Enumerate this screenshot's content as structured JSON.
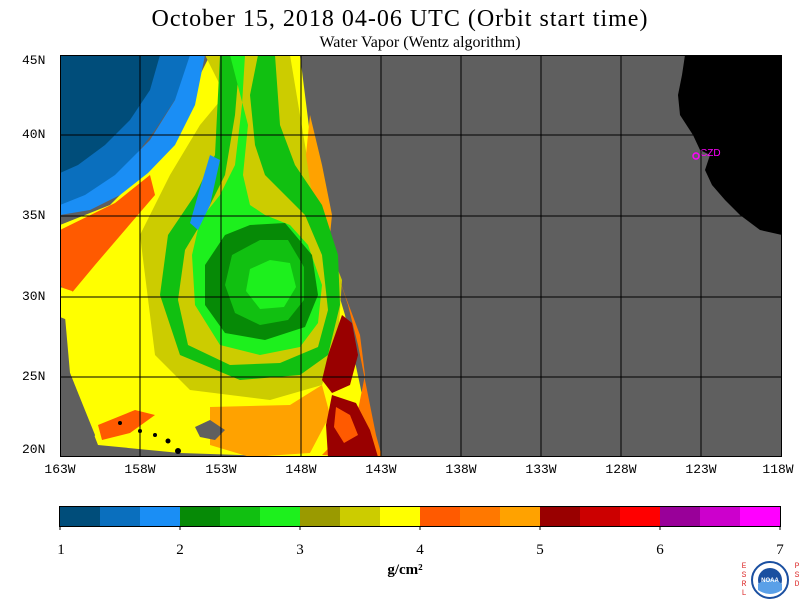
{
  "title": "October 15, 2018  04-06 UTC  (Orbit start time)",
  "subtitle": "Water Vapor (Wentz algorithm)",
  "lat_labels": [
    "45N",
    "40N",
    "35N",
    "30N",
    "25N",
    "20N"
  ],
  "lon_labels": [
    "163W",
    "158W",
    "153W",
    "148W",
    "143W",
    "138W",
    "133W",
    "128W",
    "123W",
    "118W"
  ],
  "station_label": "CZD",
  "colorbar": {
    "colors": [
      "#004d7a",
      "#0a6fbe",
      "#1a8ef5",
      "#068a06",
      "#11c011",
      "#1df01d",
      "#9a9a00",
      "#cccc00",
      "#ffff00",
      "#ff5a00",
      "#ff7800",
      "#ffa200",
      "#990000",
      "#cc0000",
      "#ff0000",
      "#990099",
      "#cc00cc",
      "#ff00ff"
    ],
    "ticks": [
      "1",
      "2",
      "3",
      "4",
      "5",
      "6",
      "7"
    ],
    "units": "g/cm²"
  },
  "colors": {
    "no_data": "#5f5f5f",
    "land": "#000000",
    "grid": "#000000",
    "station": "#ff00ff"
  },
  "logo": {
    "left_text": "ESRL",
    "right_text": "PSD",
    "center_text": "NOAA"
  }
}
